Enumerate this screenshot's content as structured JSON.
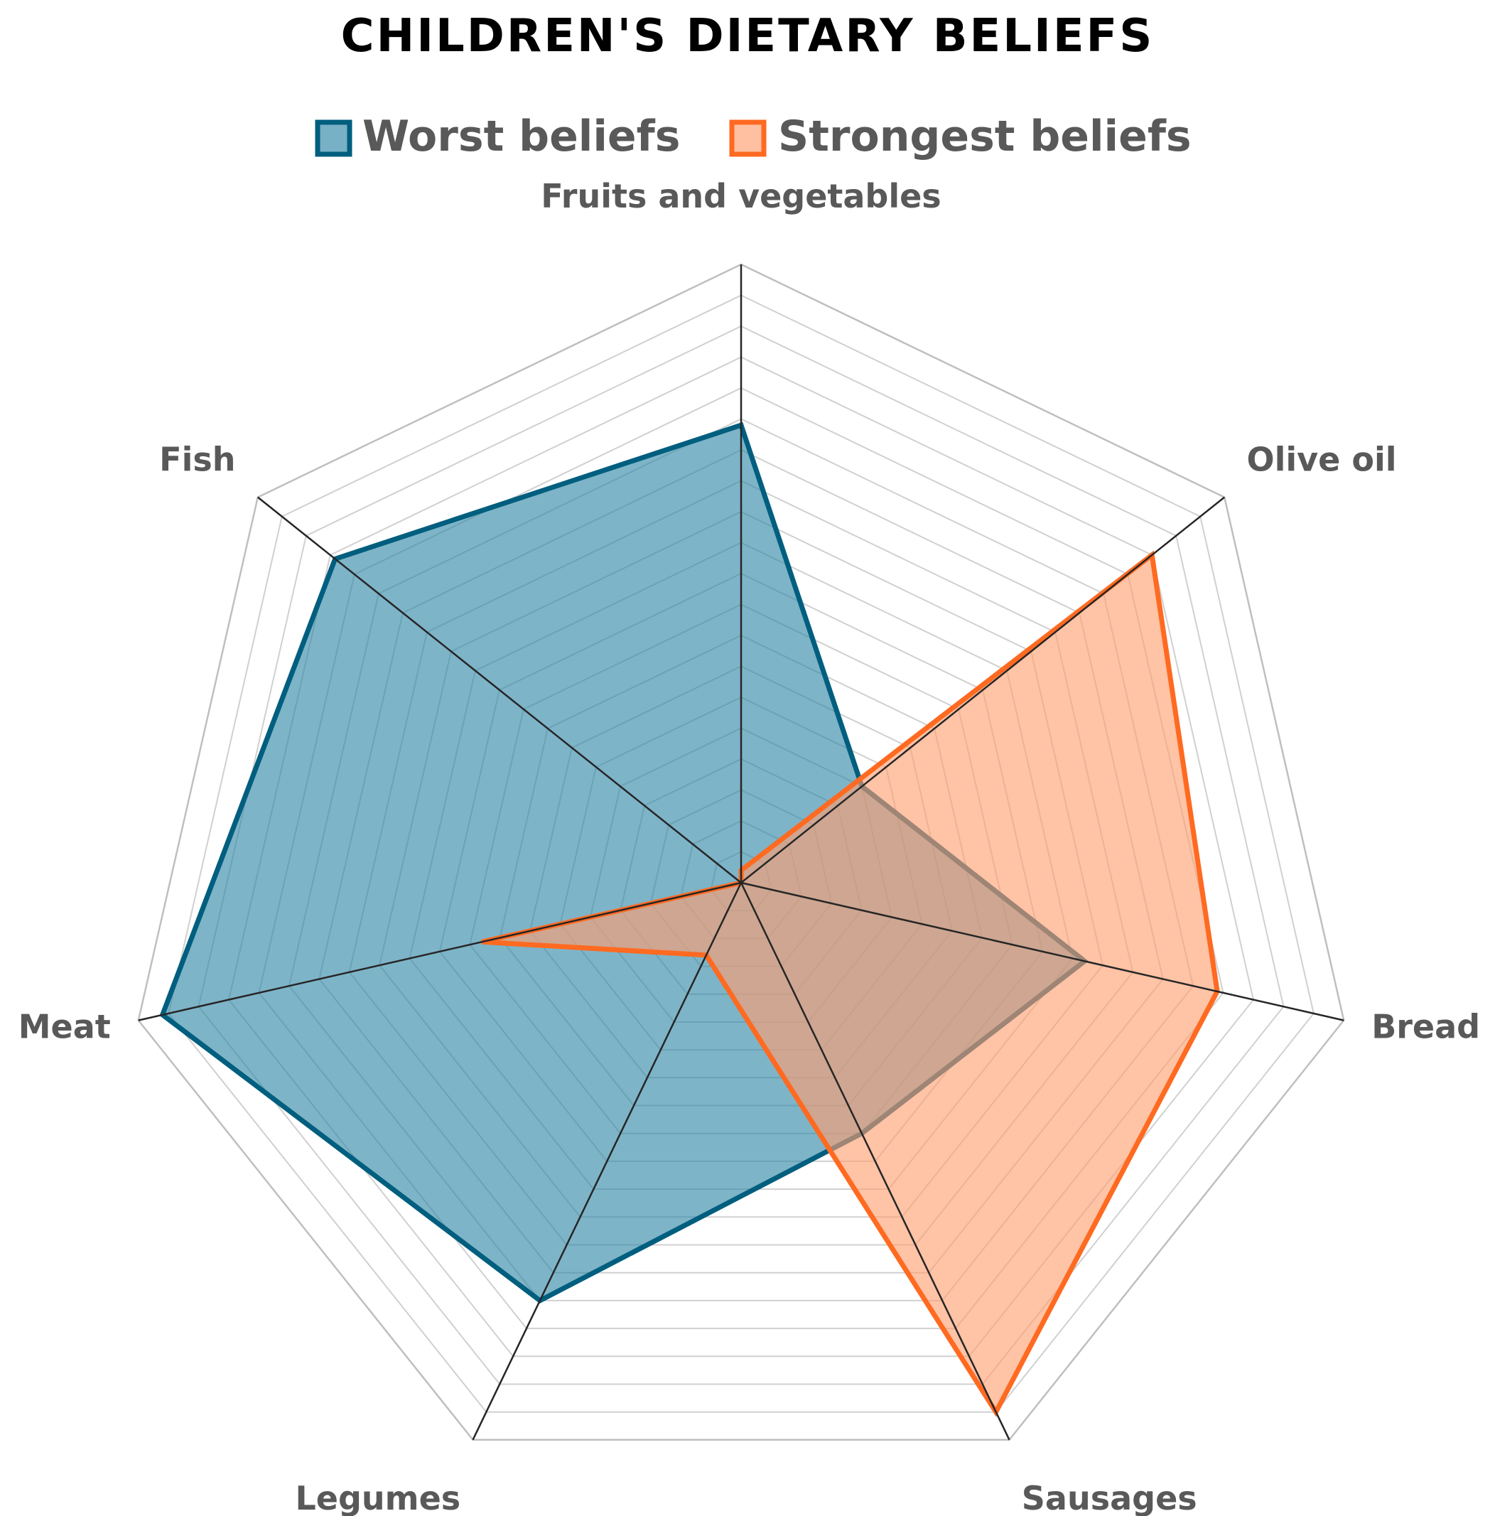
{
  "chart_data": {
    "type": "radar",
    "title": "CHILDREN'S DIETARY BELIEFS",
    "categories": [
      "Fruits and vegetables",
      "Olive oil",
      "Bread",
      "Sausages",
      "Legumes",
      "Meat",
      "Fish"
    ],
    "series": [
      {
        "name": "Worst beliefs",
        "color": "#005E7E",
        "fill": "#2F86A6",
        "values": [
          7.4,
          2.5,
          5.7,
          4.5,
          7.5,
          9.6,
          8.4
        ]
      },
      {
        "name": "Strongest beliefs",
        "color": "#FF6A21",
        "fill": "#FF9E70",
        "values": [
          0.2,
          8.5,
          7.9,
          9.5,
          1.3,
          4.3,
          0.0
        ]
      }
    ],
    "rlim": [
      0,
      10
    ],
    "grid_rings": 20,
    "legend_position": "top"
  }
}
